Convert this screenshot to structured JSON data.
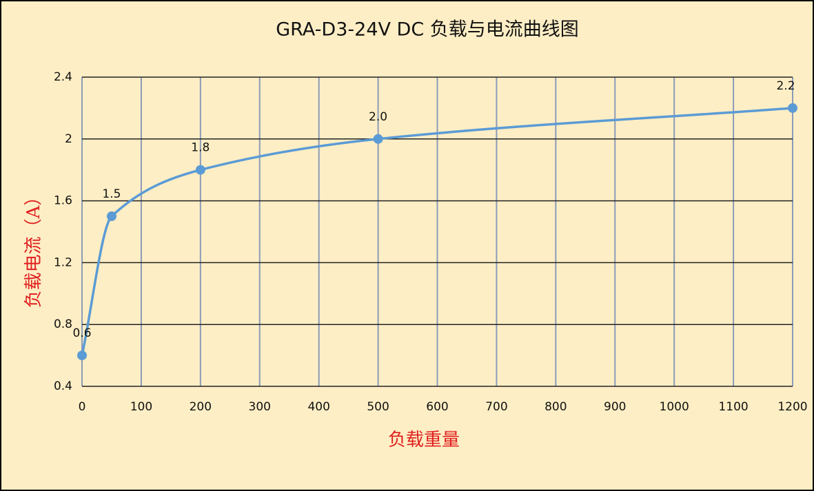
{
  "chart_data": {
    "type": "line",
    "title": "GRA-D3-24V DC 负载与电流曲线图",
    "x_label": "负载重量",
    "y_label": "负载电流（A）",
    "x": [
      0,
      50,
      200,
      500,
      1200
    ],
    "values": [
      0.6,
      1.5,
      1.8,
      2.0,
      2.2
    ],
    "value_labels": [
      "0.6",
      "1.5",
      "1.8",
      "2.0",
      "2.2"
    ],
    "color": "#5b9bd5",
    "smooth": true,
    "xlim": [
      0,
      1200
    ],
    "xticks": [
      0,
      100,
      200,
      300,
      400,
      500,
      600,
      700,
      800,
      900,
      1000,
      1100,
      1200
    ],
    "ylim": [
      0.4,
      2.4
    ],
    "yticks": [
      0.4,
      0.8,
      1.2,
      1.6,
      2,
      2.4
    ],
    "grid": true
  }
}
